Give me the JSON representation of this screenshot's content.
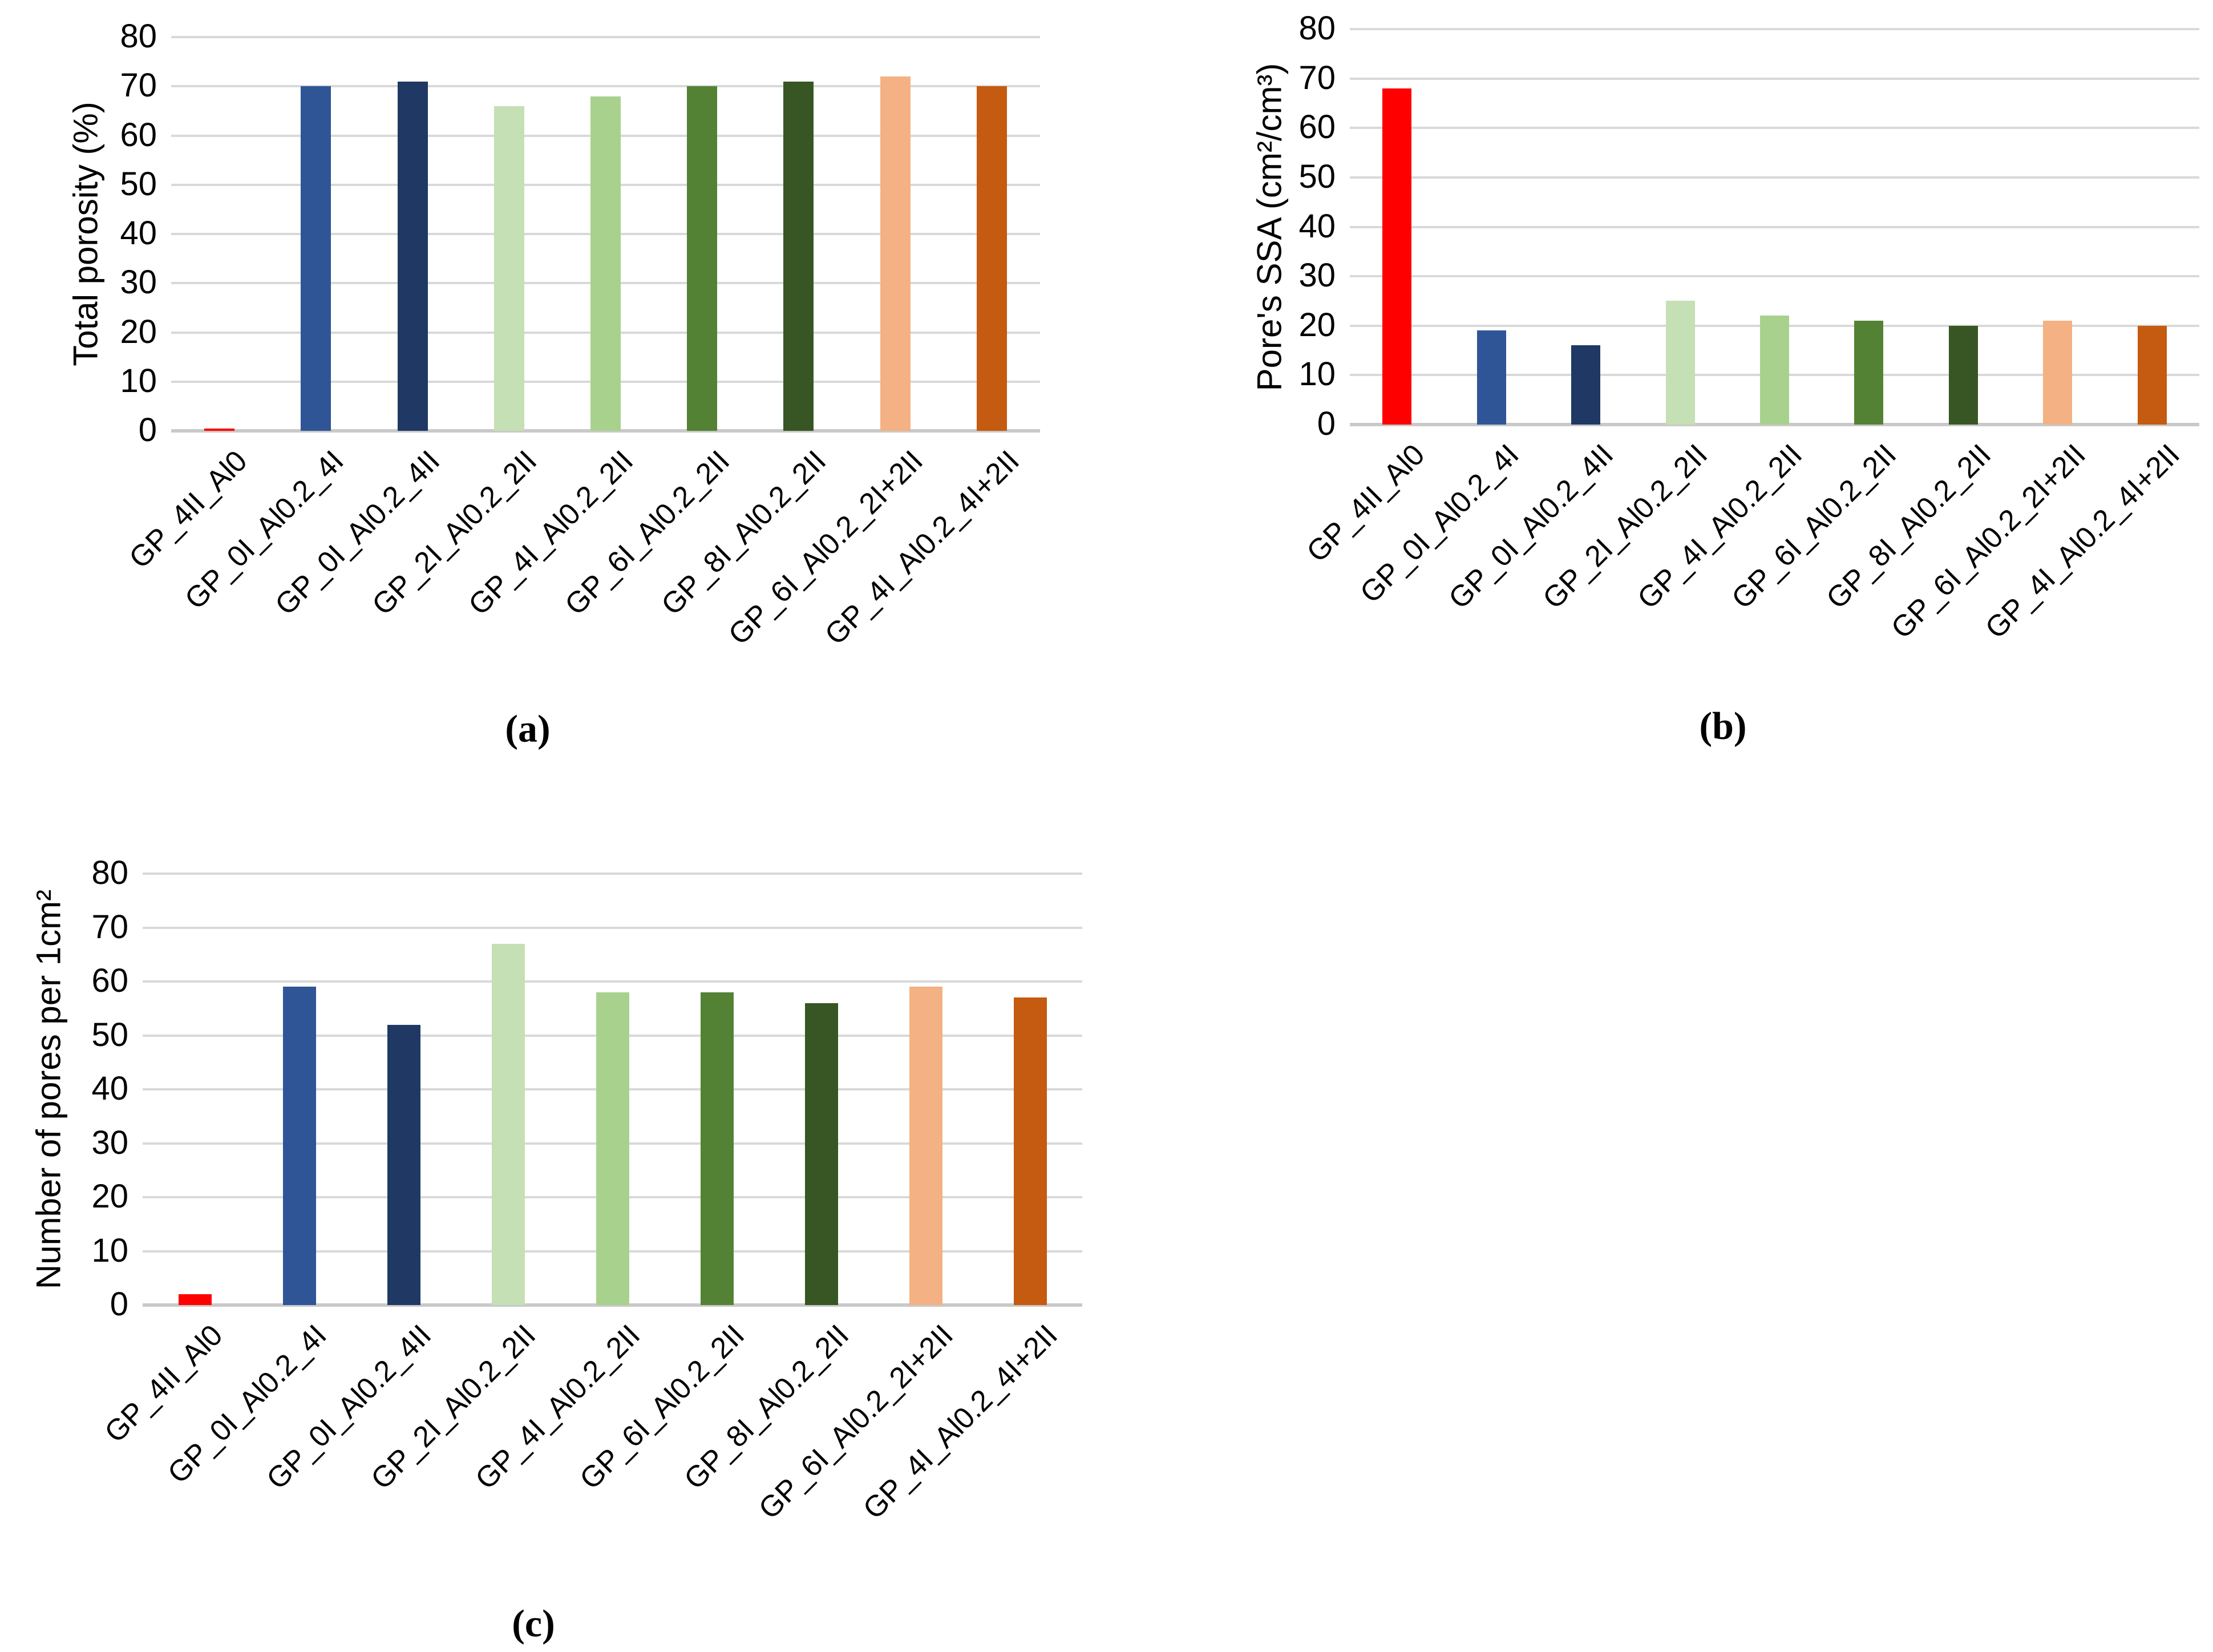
{
  "figure": {
    "background": "#FFFFFF",
    "grid_color": "#D9D9D9",
    "axis_color": "#C9C9C9",
    "bar_colors": [
      "#FF0000",
      "#2F5597",
      "#1F3864",
      "#C5E0B4",
      "#A9D18E",
      "#548235",
      "#375623",
      "#F4B183",
      "#C55A11"
    ]
  },
  "chart_data": [
    {
      "id": "a",
      "type": "bar",
      "caption": "(a)",
      "ylabel": "Total porosity (%)",
      "xlabel": "",
      "ylim": [
        0,
        80
      ],
      "ytick_step": 10,
      "grid": true,
      "legend_position": "none",
      "categories": [
        "GP_4II_Al0",
        "GP_0I_Al0.2_4I",
        "GP_0I_Al0.2_4II",
        "GP_2I_Al0.2_2II",
        "GP_4I_Al0.2_2II",
        "GP_6I_Al0.2_2II",
        "GP_8I_Al0.2_2II",
        "GP_6I_Al0.2_2I+2II",
        "GP_4I_Al0.2_4I+2II"
      ],
      "values": [
        0.5,
        70,
        71,
        66,
        68,
        70,
        71,
        72,
        70
      ]
    },
    {
      "id": "b",
      "type": "bar",
      "caption": "(b)",
      "ylabel": "Pore's SSA  (cm²/cm³)",
      "xlabel": "",
      "ylim": [
        0,
        80
      ],
      "ytick_step": 10,
      "grid": true,
      "legend_position": "none",
      "categories": [
        "GP_4II_Al0",
        "GP_0I_Al0.2_4I",
        "GP_0I_Al0.2_4II",
        "GP_2I_Al0.2_2II",
        "GP_4I_Al0.2_2II",
        "GP_6I_Al0.2_2II",
        "GP_8I_Al0.2_2II",
        "GP_6I_Al0.2_2I+2II",
        "GP_4I_Al0.2_4I+2II"
      ],
      "values": [
        68,
        19,
        16,
        25,
        22,
        21,
        20,
        21,
        20
      ]
    },
    {
      "id": "c",
      "type": "bar",
      "caption": "(c)",
      "ylabel": "Number of pores per 1cm²",
      "xlabel": "",
      "ylim": [
        0,
        80
      ],
      "ytick_step": 10,
      "grid": true,
      "legend_position": "none",
      "categories": [
        "GP_4II_Al0",
        "GP_0I_Al0.2_4I",
        "GP_0I_Al0.2_4II",
        "GP_2I_Al0.2_2II",
        "GP_4I_Al0.2_2II",
        "GP_6I_Al0.2_2II",
        "GP_8I_Al0.2_2II",
        "GP_6I_Al0.2_2I+2II",
        "GP_4I_Al0.2_4I+2II"
      ],
      "values": [
        2,
        59,
        52,
        67,
        58,
        58,
        56,
        59,
        57
      ]
    }
  ]
}
